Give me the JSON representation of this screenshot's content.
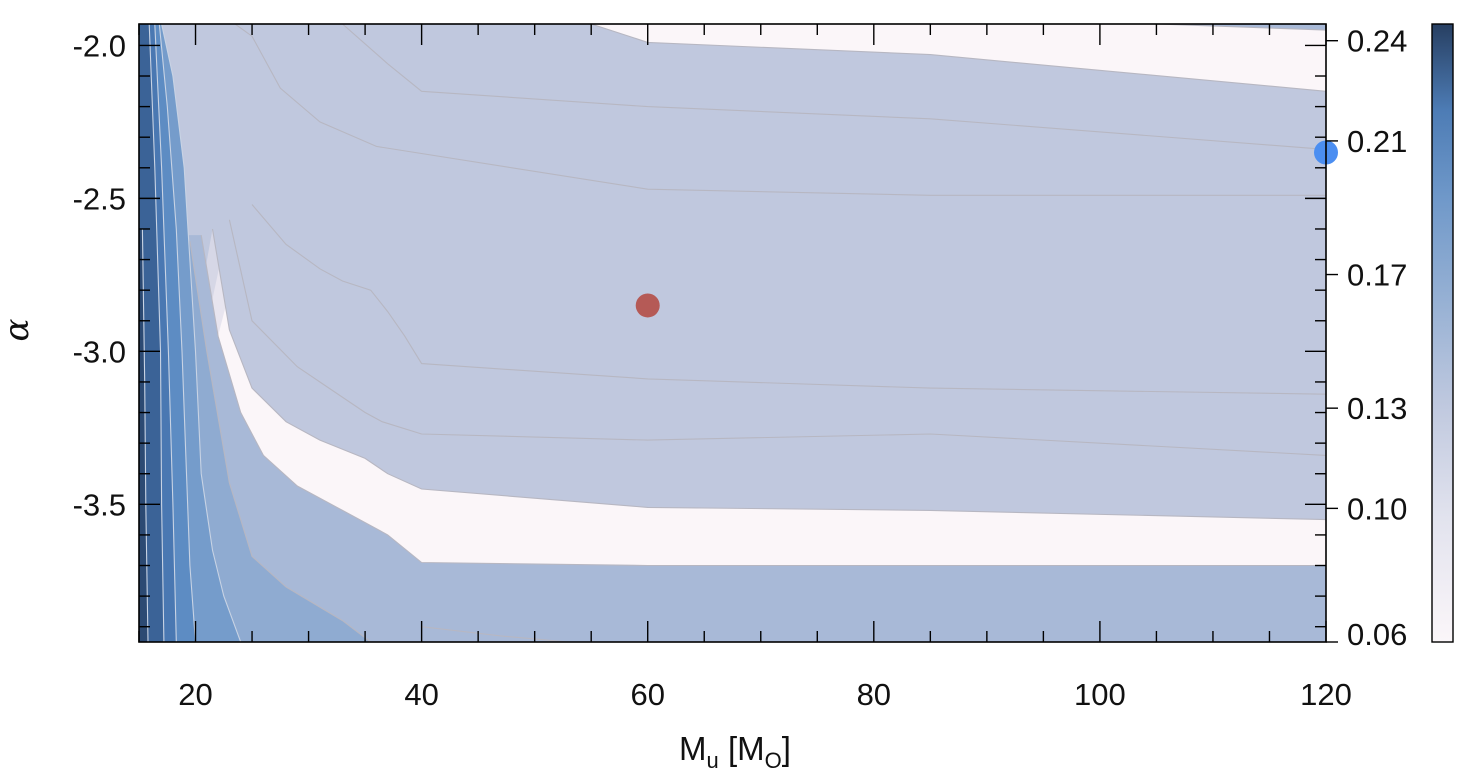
{
  "chart_data": {
    "type": "contour",
    "xlabel": "M_u [M_O]",
    "xlabel_main": "M",
    "xlabel_sub": "u",
    "xlabel_unit_main": "M",
    "xlabel_unit_sub": "O",
    "ylabel": "α",
    "xlim": [
      15,
      120
    ],
    "ylim": [
      -3.95,
      -1.93
    ],
    "x_ticks": [
      20,
      40,
      60,
      80,
      100,
      120
    ],
    "y_ticks": [
      -2.0,
      -2.5,
      -3.0,
      -3.5
    ],
    "y_tick_labels": [
      "-2.0",
      "-2.5",
      "-3.0",
      "-3.5"
    ],
    "colorbar": {
      "range": [
        0.06,
        0.245
      ],
      "ticks": [
        0.06,
        0.1,
        0.13,
        0.17,
        0.21,
        0.24
      ],
      "tick_labels": [
        "0.06",
        "0.10",
        "0.13",
        "0.17",
        "0.21",
        "0.24"
      ]
    },
    "level_colors": [
      "#fbf6f9",
      "#e8e5ef",
      "#d6d7e6",
      "#c0c8de",
      "#a8b9d7",
      "#8fabd1",
      "#759ccb",
      "#5d8cc3",
      "#4a78b2",
      "#3b6397",
      "#2c4a73"
    ],
    "contours": [
      {
        "level": 0.075,
        "points": [
          [
            23.5,
            -1.93
          ],
          [
            25,
            -1.97
          ],
          [
            27.5,
            -2.14
          ],
          [
            31,
            -2.25
          ],
          [
            36,
            -2.33
          ],
          [
            60,
            -2.47
          ],
          [
            85,
            -2.49
          ],
          [
            120,
            -2.49
          ]
        ]
      },
      {
        "level": 0.075,
        "points": [
          [
            25,
            -2.52
          ],
          [
            28,
            -2.65
          ],
          [
            31,
            -2.73
          ],
          [
            33,
            -2.77
          ],
          [
            35.5,
            -2.8
          ],
          [
            37,
            -2.87
          ],
          [
            38.5,
            -2.95
          ],
          [
            40,
            -3.04
          ],
          [
            60,
            -3.09
          ],
          [
            85,
            -3.12
          ],
          [
            120,
            -3.14
          ]
        ]
      },
      {
        "level": 0.09,
        "points": [
          [
            33,
            -1.93
          ],
          [
            37,
            -2.06
          ],
          [
            40,
            -2.15
          ],
          [
            60,
            -2.2
          ],
          [
            85,
            -2.24
          ],
          [
            120,
            -2.34
          ]
        ]
      },
      {
        "level": 0.09,
        "points": [
          [
            23,
            -2.57
          ],
          [
            25,
            -2.9
          ],
          [
            29,
            -3.05
          ],
          [
            31,
            -3.1
          ],
          [
            35,
            -3.2
          ],
          [
            36.5,
            -3.23
          ],
          [
            40,
            -3.27
          ],
          [
            60,
            -3.29
          ],
          [
            85,
            -3.27
          ],
          [
            120,
            -3.34
          ]
        ]
      },
      {
        "level": 0.105,
        "points": [
          [
            55,
            -1.93
          ],
          [
            60,
            -1.99
          ],
          [
            85,
            -2.03
          ],
          [
            120,
            -2.15
          ]
        ]
      },
      {
        "level": 0.105,
        "points": [
          [
            21.5,
            -2.6
          ],
          [
            23,
            -2.93
          ],
          [
            25,
            -3.12
          ],
          [
            28,
            -3.23
          ],
          [
            31,
            -3.29
          ],
          [
            35,
            -3.35
          ],
          [
            37,
            -3.4
          ],
          [
            40,
            -3.45
          ],
          [
            60,
            -3.51
          ],
          [
            85,
            -3.52
          ],
          [
            120,
            -3.55
          ]
        ]
      },
      {
        "level": 0.12,
        "points": [
          [
            105,
            -1.93
          ],
          [
            120,
            -1.95
          ]
        ]
      },
      {
        "level": 0.12,
        "points": [
          [
            20.5,
            -2.62
          ],
          [
            22,
            -2.95
          ],
          [
            24,
            -3.2
          ],
          [
            26,
            -3.34
          ],
          [
            29,
            -3.44
          ],
          [
            33,
            -3.52
          ],
          [
            37,
            -3.6
          ],
          [
            40,
            -3.69
          ],
          [
            60,
            -3.7
          ],
          [
            85,
            -3.7
          ],
          [
            120,
            -3.7
          ]
        ]
      },
      {
        "level": 0.14,
        "points": [
          [
            19.5,
            -2.64
          ],
          [
            21,
            -3.0
          ],
          [
            23,
            -3.43
          ],
          [
            25,
            -3.67
          ],
          [
            28,
            -3.77
          ],
          [
            33,
            -3.88
          ],
          [
            35.5,
            -3.95
          ]
        ]
      },
      {
        "level": 0.14,
        "points": [
          [
            40,
            -3.9
          ],
          [
            47,
            -3.93
          ],
          [
            53,
            -3.95
          ]
        ]
      },
      {
        "level": 0.155,
        "points": [
          [
            17,
            -1.93
          ],
          [
            18,
            -2.1
          ],
          [
            19,
            -2.4
          ],
          [
            20,
            -3.0
          ],
          [
            20.5,
            -3.4
          ],
          [
            21.5,
            -3.65
          ],
          [
            22.5,
            -3.8
          ],
          [
            24,
            -3.95
          ]
        ]
      },
      {
        "level": 0.17,
        "points": [
          [
            16.8,
            -1.93
          ],
          [
            17.5,
            -2.2
          ],
          [
            18.3,
            -2.6
          ],
          [
            18.8,
            -3.0
          ],
          [
            19.2,
            -3.4
          ],
          [
            19.5,
            -3.7
          ],
          [
            20,
            -3.95
          ]
        ]
      },
      {
        "level": 0.185,
        "points": [
          [
            16.4,
            -1.93
          ],
          [
            17,
            -2.4
          ],
          [
            17.6,
            -3.0
          ],
          [
            18,
            -3.5
          ],
          [
            18.3,
            -3.95
          ]
        ]
      },
      {
        "level": 0.2,
        "points": [
          [
            15.9,
            -1.93
          ],
          [
            16.4,
            -2.4
          ],
          [
            16.9,
            -3.0
          ],
          [
            17,
            -3.5
          ],
          [
            17.2,
            -3.95
          ]
        ]
      },
      {
        "level": 0.22,
        "points": [
          [
            15.3,
            -2.6
          ],
          [
            15.5,
            -3.1
          ],
          [
            15.6,
            -3.5
          ],
          [
            15.8,
            -3.95
          ]
        ]
      }
    ],
    "markers": [
      {
        "name": "red-point",
        "x": 60,
        "y": -2.85,
        "color": "#b55a56"
      },
      {
        "name": "blue-point",
        "x": 120,
        "y": -2.35,
        "color": "#4b8ef1"
      }
    ]
  }
}
